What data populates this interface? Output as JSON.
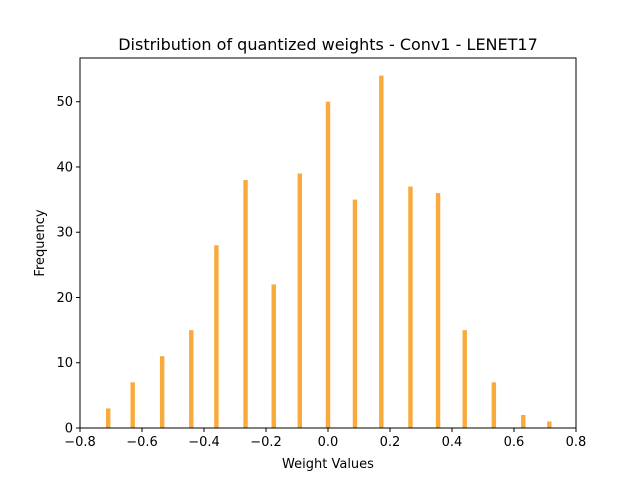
{
  "chart_data": {
    "type": "bar",
    "title": "Distribution of quantized weights - Conv1 - LENET17",
    "xlabel": "Weight Values",
    "ylabel": "Frequency",
    "xlim": [
      -0.8,
      0.8
    ],
    "ylim": [
      0,
      56.7
    ],
    "bar_color": "#f9a533",
    "bar_width": 0.0143,
    "grid": false,
    "x_ticks": [
      -0.8,
      -0.6,
      -0.4,
      -0.2,
      0.0,
      0.2,
      0.4,
      0.6,
      0.8
    ],
    "x_tick_labels": [
      "−0.8",
      "−0.6",
      "−0.4",
      "−0.2",
      "0.0",
      "0.2",
      "0.4",
      "0.6",
      "0.8"
    ],
    "y_ticks": [
      0,
      10,
      20,
      30,
      40,
      50
    ],
    "y_tick_labels": [
      "0",
      "10",
      "20",
      "30",
      "40",
      "50"
    ],
    "x": [
      -0.709,
      -0.63,
      -0.535,
      -0.441,
      -0.36,
      -0.266,
      -0.175,
      -0.091,
      0.0,
      0.087,
      0.172,
      0.266,
      0.355,
      0.441,
      0.535,
      0.63,
      0.714
    ],
    "values": [
      3,
      7,
      11,
      15,
      28,
      38,
      22,
      39,
      50,
      35,
      54,
      37,
      36,
      15,
      7,
      2,
      1
    ]
  }
}
